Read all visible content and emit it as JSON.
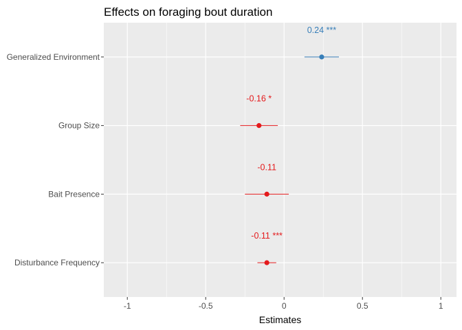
{
  "chart_data": {
    "type": "forest",
    "title": "Effects on foraging bout duration",
    "xlabel": "Estimates",
    "ylabel": "",
    "xlim": [
      -1.15,
      1.1
    ],
    "xticks": [
      -1,
      -0.5,
      0,
      0.5,
      1
    ],
    "xtick_labels": [
      "-1",
      "-0.5",
      "0",
      "0.5",
      "1"
    ],
    "grid": true,
    "panel_background": "#ebebeb",
    "positive_color": "#377eb8",
    "negative_color": "#e41a1c",
    "terms": [
      {
        "label": "Generalized Environment",
        "estimate": 0.24,
        "ci_low": 0.13,
        "ci_high": 0.35,
        "label_text": "0.24 ***",
        "sign": "positive"
      },
      {
        "label": "Group Size",
        "estimate": -0.16,
        "ci_low": -0.28,
        "ci_high": -0.04,
        "label_text": "-0.16 *",
        "sign": "negative"
      },
      {
        "label": "Bait Presence",
        "estimate": -0.11,
        "ci_low": -0.25,
        "ci_high": 0.03,
        "label_text": "-0.11",
        "sign": "negative"
      },
      {
        "label": "Disturbance Frequency",
        "estimate": -0.11,
        "ci_low": -0.17,
        "ci_high": -0.05,
        "label_text": "-0.11 ***",
        "sign": "negative"
      }
    ]
  }
}
